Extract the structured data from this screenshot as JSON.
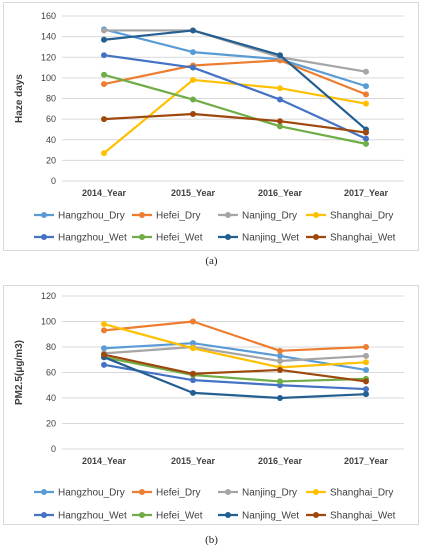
{
  "captions": {
    "a": "(a)",
    "b": "(b)"
  },
  "colors": {
    "Hangzhou_Dry": "#5b9bd5",
    "Hefei_Dry": "#ed7d31",
    "Nanjing_Dry": "#a5a5a5",
    "Shanghai_Dry": "#ffc000",
    "Hangzhou_Wet": "#4472c4",
    "Hefei_Wet": "#70ad47",
    "Nanjing_Wet": "#255e91",
    "Shanghai_Wet": "#9e480e"
  },
  "chart_data": [
    {
      "type": "line",
      "title": "",
      "xlabel": "",
      "ylabel": "Haze days",
      "ylim": [
        0,
        160
      ],
      "yticks": [
        "0",
        "20",
        "40",
        "60",
        "80",
        "100",
        "120",
        "140",
        "160"
      ],
      "categories": [
        "2014_Year",
        "2015_Year",
        "2016_Year",
        "2017_Year"
      ],
      "legend": "bottom",
      "series": [
        {
          "name": "Hangzhou_Dry",
          "values": [
            147,
            125,
            118,
            92
          ]
        },
        {
          "name": "Hefei_Dry",
          "values": [
            94,
            112,
            117,
            84
          ]
        },
        {
          "name": "Nanjing_Dry",
          "values": [
            146,
            146,
            120,
            106
          ]
        },
        {
          "name": "Shanghai_Dry",
          "values": [
            27,
            98,
            90,
            75
          ]
        },
        {
          "name": "Hangzhou_Wet",
          "values": [
            122,
            110,
            79,
            41
          ]
        },
        {
          "name": "Hefei_Wet",
          "values": [
            103,
            79,
            53,
            36
          ]
        },
        {
          "name": "Nanjing_Wet",
          "values": [
            137,
            146,
            122,
            50
          ]
        },
        {
          "name": "Shanghai_Wet",
          "values": [
            60,
            65,
            58,
            47
          ]
        }
      ]
    },
    {
      "type": "line",
      "title": "",
      "xlabel": "",
      "ylabel": "PM2.5(μg/m3)",
      "ylim": [
        0,
        120
      ],
      "yticks": [
        "0",
        "20",
        "40",
        "60",
        "80",
        "100",
        "120"
      ],
      "categories": [
        "2014_Year",
        "2015_Year",
        "2016_Year",
        "2017_Year"
      ],
      "legend": "bottom",
      "series": [
        {
          "name": "Hangzhou_Dry",
          "values": [
            79,
            83,
            73,
            62
          ]
        },
        {
          "name": "Hefei_Dry",
          "values": [
            93,
            100,
            77,
            80
          ]
        },
        {
          "name": "Nanjing_Dry",
          "values": [
            75,
            80,
            69,
            73
          ]
        },
        {
          "name": "Shanghai_Dry",
          "values": [
            98,
            79,
            64,
            68
          ]
        },
        {
          "name": "Hangzhou_Wet",
          "values": [
            66,
            54,
            50,
            47
          ]
        },
        {
          "name": "Hefei_Wet",
          "values": [
            72,
            58,
            53,
            55
          ]
        },
        {
          "name": "Nanjing_Wet",
          "values": [
            72,
            44,
            40,
            43
          ]
        },
        {
          "name": "Shanghai_Wet",
          "values": [
            74,
            59,
            62,
            53
          ]
        }
      ]
    }
  ]
}
